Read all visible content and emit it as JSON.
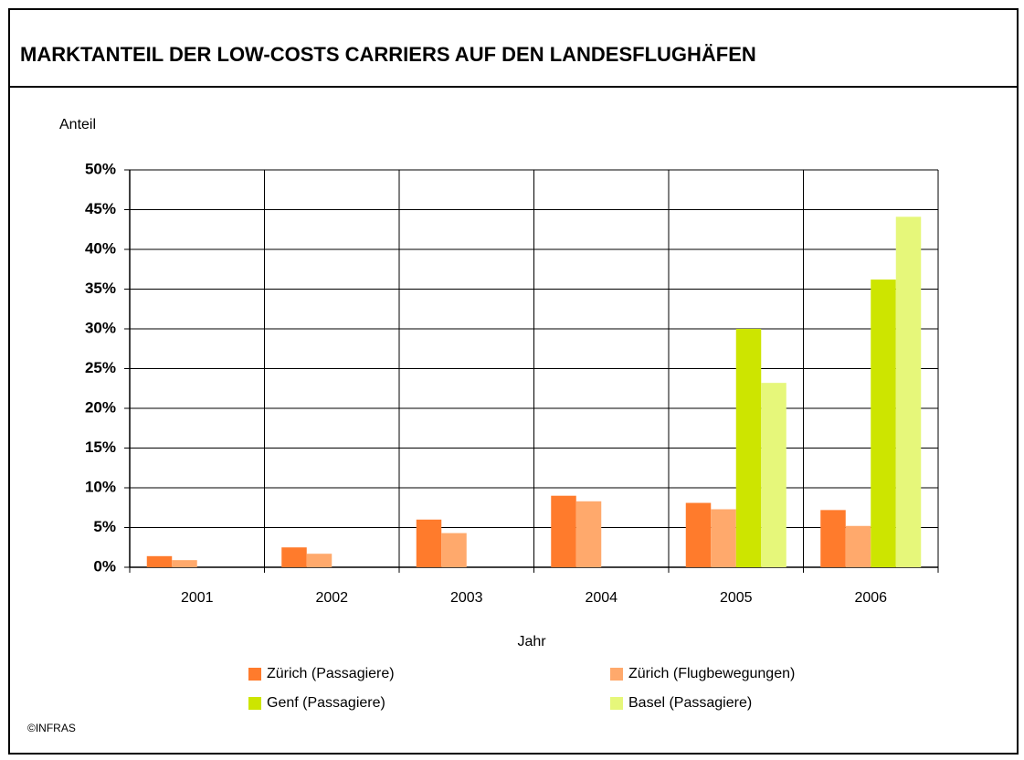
{
  "chart_data": {
    "type": "bar",
    "title": "MARKTANTEIL DER LOW-COSTS CARRIERS AUF DEN LANDESFLUGHÄFEN",
    "y_label": "Anteil",
    "x_label": "Jahr",
    "source": "©INFRAS",
    "categories": [
      "2001",
      "2002",
      "2003",
      "2004",
      "2005",
      "2006"
    ],
    "series": [
      {
        "name": "Zürich (Passagiere)",
        "color": "#ff7b2c",
        "values": [
          1.4,
          2.5,
          6.0,
          9.0,
          8.1,
          7.2
        ]
      },
      {
        "name": "Zürich (Flugbewegungen)",
        "color": "#ffa96c",
        "values": [
          0.9,
          1.7,
          4.3,
          8.3,
          7.3,
          5.2
        ]
      },
      {
        "name": "Genf (Passagiere)",
        "color": "#cde500",
        "values": [
          null,
          null,
          null,
          null,
          30.0,
          36.2
        ]
      },
      {
        "name": "Basel (Passagiere)",
        "color": "#e6f77a",
        "values": [
          null,
          null,
          null,
          null,
          23.2,
          44.1
        ]
      }
    ],
    "ylim": [
      0,
      50
    ],
    "yticks": [
      {
        "value": 0,
        "label": "0%"
      },
      {
        "value": 5,
        "label": "5%"
      },
      {
        "value": 10,
        "label": "10%"
      },
      {
        "value": 15,
        "label": "15%"
      },
      {
        "value": 20,
        "label": "20%"
      },
      {
        "value": 25,
        "label": "25%"
      },
      {
        "value": 30,
        "label": "30%"
      },
      {
        "value": 35,
        "label": "35%"
      },
      {
        "value": 40,
        "label": "40%"
      },
      {
        "value": 45,
        "label": "45%"
      },
      {
        "value": 50,
        "label": "50%"
      }
    ],
    "grid": true
  }
}
